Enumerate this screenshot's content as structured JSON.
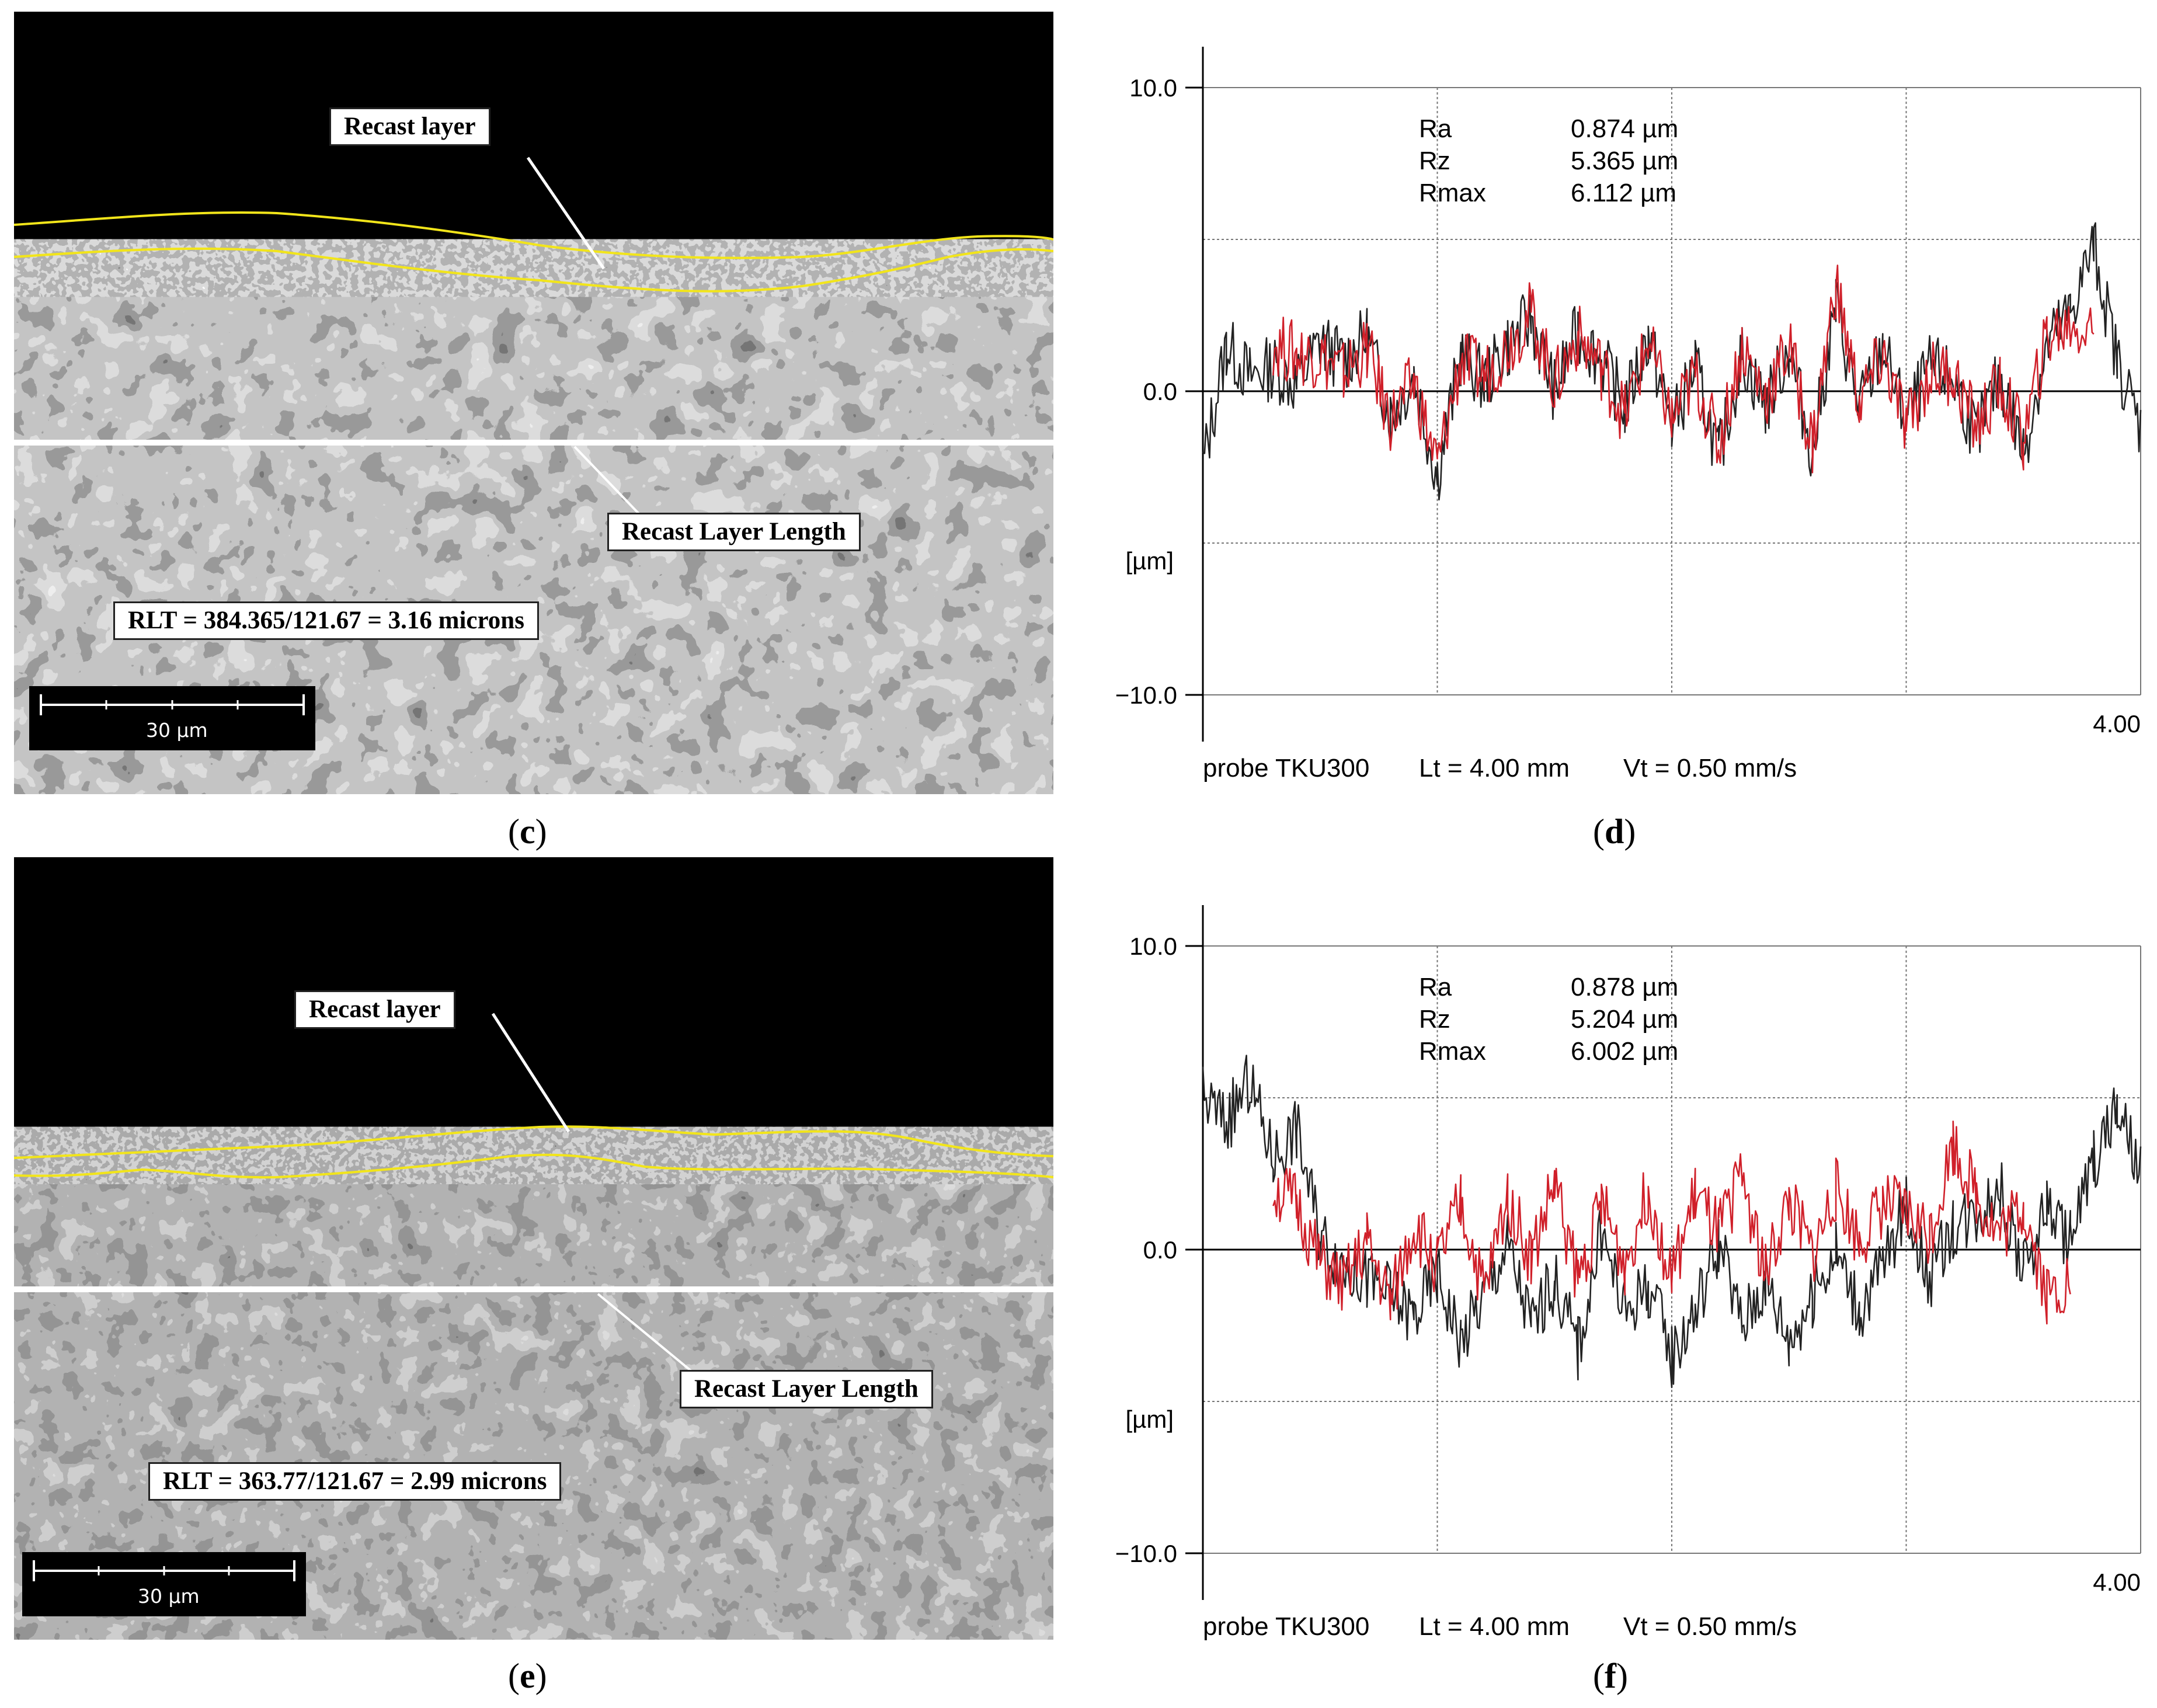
{
  "panels": [
    {
      "id": "c",
      "type": "micrograph",
      "label": "c",
      "callout_top": "Recast layer",
      "callout_length": "Recast Layer Length",
      "rlt_text": "RLT = 384.365/121.67 = 3.16 microns",
      "scale_text": "30 µm"
    },
    {
      "id": "d",
      "type": "chart",
      "label": "d",
      "y_unit": "[µm]",
      "y_ticks": [
        "10.0",
        "0.0",
        "−10.0"
      ],
      "x_end": "4.00",
      "stats": [
        {
          "name": "Ra",
          "value": "0.874 µm"
        },
        {
          "name": "Rz",
          "value": "5.365 µm"
        },
        {
          "name": "Rmax",
          "value": "6.112 µm"
        }
      ],
      "footer": {
        "probe": "probe TKU300",
        "lt": "Lt = 4.00  mm",
        "vt": "Vt = 0.50  mm/s"
      }
    },
    {
      "id": "e",
      "type": "micrograph",
      "label": "e",
      "callout_top": "Recast layer",
      "callout_length": "Recast Layer Length",
      "rlt_text": "RLT = 363.77/121.67 = 2.99 microns",
      "scale_text": "30 µm"
    },
    {
      "id": "f",
      "type": "chart",
      "label": "f",
      "y_unit": "[µm]",
      "y_ticks": [
        "10.0",
        "0.0",
        "−10.0"
      ],
      "x_end": "4.00",
      "stats": [
        {
          "name": "Ra",
          "value": "0.878 µm"
        },
        {
          "name": "Rz",
          "value": "5.204 µm"
        },
        {
          "name": "Rmax",
          "value": "6.002 µm"
        }
      ],
      "footer": {
        "probe": "probe TKU300",
        "lt": "Lt = 4.00  mm",
        "vt": "Vt = 0.50  mm/s"
      }
    }
  ],
  "colors": {
    "measured": "#222222",
    "filtered": "#d0202a",
    "boundary": "#f2e51a",
    "grid": "#777777"
  },
  "chart_data": [
    {
      "type": "line",
      "panel": "d",
      "xlim": [
        0,
        4.0
      ],
      "ylim": [
        -10.0,
        10.0
      ],
      "yticks": [
        10.0,
        5.0,
        0.0,
        -5.0,
        -10.0
      ],
      "xticks": [
        0,
        1.0,
        2.0,
        3.0,
        4.0
      ],
      "grid": true,
      "x": [
        0.0,
        0.1,
        0.2,
        0.3,
        0.4,
        0.5,
        0.6,
        0.7,
        0.8,
        0.9,
        1.0,
        1.1,
        1.2,
        1.3,
        1.4,
        1.5,
        1.6,
        1.7,
        1.8,
        1.9,
        2.0,
        2.1,
        2.2,
        2.3,
        2.4,
        2.5,
        2.6,
        2.7,
        2.8,
        2.9,
        3.0,
        3.1,
        3.2,
        3.3,
        3.4,
        3.5,
        3.6,
        3.7,
        3.8,
        3.9,
        4.0
      ],
      "series": [
        {
          "values": [
            -2.5,
            1.5,
            0.5,
            0.8,
            0.2,
            1.6,
            1.0,
            1.8,
            -0.8,
            0.5,
            -2.8,
            1.2,
            0.3,
            1.5,
            2.4,
            0.0,
            2.0,
            1.0,
            -0.5,
            1.8,
            -1.2,
            0.8,
            -2.2,
            1.2,
            -0.5,
            1.4,
            -2.0,
            2.8,
            -0.6,
            1.5,
            -1.0,
            0.8,
            0.4,
            -1.5,
            0.5,
            -2.0,
            1.5,
            2.6,
            4.8,
            1.0,
            -1.2
          ]
        },
        {
          "values": [
            null,
            null,
            null,
            1.6,
            1.2,
            1.2,
            0.6,
            1.4,
            -1.0,
            0.3,
            -2.5,
            1.0,
            0.5,
            1.5,
            2.6,
            0.2,
            1.8,
            0.8,
            -0.8,
            1.6,
            -1.0,
            0.5,
            -1.8,
            1.5,
            -0.2,
            1.5,
            -1.8,
            3.5,
            -0.4,
            1.2,
            -1.2,
            0.6,
            0.6,
            -1.2,
            0.2,
            -1.6,
            1.8,
            2.2,
            2.0,
            null,
            null
          ]
        }
      ]
    },
    {
      "type": "line",
      "panel": "f",
      "xlim": [
        0,
        4.0
      ],
      "ylim": [
        -10.0,
        10.0
      ],
      "yticks": [
        10.0,
        5.0,
        0.0,
        -5.0,
        -10.0
      ],
      "xticks": [
        0,
        1.0,
        2.0,
        3.0,
        4.0
      ],
      "grid": true,
      "x": [
        0.0,
        0.1,
        0.2,
        0.3,
        0.4,
        0.5,
        0.6,
        0.7,
        0.8,
        0.9,
        1.0,
        1.1,
        1.2,
        1.3,
        1.4,
        1.5,
        1.6,
        1.7,
        1.8,
        1.9,
        2.0,
        2.1,
        2.2,
        2.3,
        2.4,
        2.5,
        2.6,
        2.7,
        2.8,
        2.9,
        3.0,
        3.1,
        3.2,
        3.3,
        3.4,
        3.5,
        3.6,
        3.7,
        3.8,
        3.9,
        4.0
      ],
      "series": [
        {
          "values": [
            5.0,
            4.2,
            5.5,
            3.0,
            4.0,
            0.5,
            -0.5,
            -1.0,
            -1.5,
            -2.2,
            -0.8,
            -3.0,
            -1.5,
            0.2,
            -2.5,
            -1.0,
            -3.2,
            0.5,
            -2.0,
            -1.2,
            -3.5,
            -2.0,
            0.2,
            -2.5,
            -1.0,
            -3.0,
            -1.5,
            0.0,
            -2.0,
            -0.5,
            1.5,
            -1.0,
            0.8,
            1.2,
            2.0,
            -0.8,
            1.5,
            0.2,
            3.0,
            4.5,
            2.5
          ]
        },
        {
          "values": [
            null,
            null,
            null,
            2.0,
            1.5,
            -0.5,
            -1.2,
            0.2,
            -1.8,
            0.8,
            -0.5,
            1.5,
            -1.5,
            1.8,
            -0.3,
            2.2,
            -1.0,
            1.5,
            -0.5,
            2.0,
            -1.0,
            1.8,
            0.5,
            2.5,
            -0.8,
            1.6,
            -0.2,
            2.0,
            0.3,
            1.5,
            1.2,
            0.5,
            3.5,
            1.8,
            0.5,
            1.5,
            -1.5,
            -1.0,
            null,
            null,
            null
          ]
        }
      ]
    }
  ]
}
